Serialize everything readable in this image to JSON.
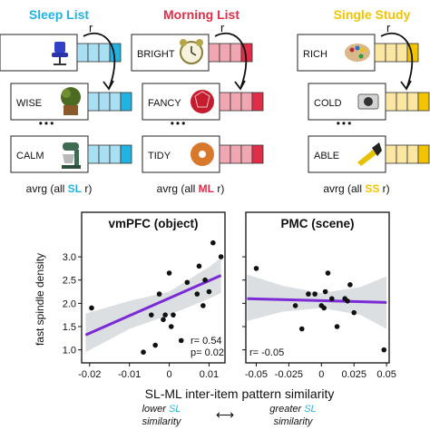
{
  "colors": {
    "sleep": "#22b3e3",
    "morning": "#e02e49",
    "single": "#f2c400",
    "sleep_light": "#a8dff3",
    "morning_light": "#f0a7b2",
    "single_light": "#fbe6a2",
    "fit_line": "#7b2bd6",
    "ci_band": "#d5d9dc"
  },
  "lists": [
    {
      "title": "Sleep List",
      "color_key": "sleep",
      "top_word": "",
      "top_icon": "chair-icon",
      "r_label": "r",
      "items": [
        {
          "word": "WISE",
          "icon": "potted-plant-icon"
        },
        {
          "word": "CALM",
          "icon": "stand-mixer-icon"
        }
      ],
      "dots": "•••",
      "avg_prefix": "avrg (all ",
      "avg_highlight": "SL",
      "avg_suffix": " r)"
    },
    {
      "title": "Morning List",
      "color_key": "morning",
      "top_word": "BRIGHT",
      "top_icon": "alarm-clock-icon",
      "r_label": "r",
      "items": [
        {
          "word": "FANCY",
          "icon": "dice-icon"
        },
        {
          "word": "TIDY",
          "icon": "donut-icon"
        }
      ],
      "dots": "•••",
      "avg_prefix": "avrg (all ",
      "avg_highlight": "ML",
      "avg_suffix": " r)"
    },
    {
      "title": "Single Study",
      "color_key": "single",
      "top_word": "RICH",
      "top_icon": "palette-icon",
      "r_label": "r",
      "items": [
        {
          "word": "COLD",
          "icon": "camera-icon"
        },
        {
          "word": "ABLE",
          "icon": "flashlight-icon"
        }
      ],
      "dots": "•••",
      "avg_prefix": "avrg (all ",
      "avg_highlight": "SS",
      "avg_suffix": " r)"
    }
  ],
  "chart_data": [
    {
      "type": "scatter",
      "title": "vmPFC (object)",
      "ylabel": "fast spindle density",
      "xlim": [
        -0.022,
        0.014
      ],
      "ylim": [
        0.72,
        3.45
      ],
      "xticks": [
        -0.02,
        -0.01,
        0,
        0.01
      ],
      "xtick_labels": [
        "-0.02",
        "-0.01",
        "0",
        "0.01"
      ],
      "yticks": [
        1.0,
        1.5,
        2.0,
        2.5,
        3.0
      ],
      "ytick_labels": [
        "1.0",
        "1.5",
        "2.0",
        "2.5",
        "3.0"
      ],
      "points": [
        {
          "x": -0.0195,
          "y": 1.9
        },
        {
          "x": -0.0065,
          "y": 0.95
        },
        {
          "x": -0.0045,
          "y": 1.75
        },
        {
          "x": -0.0035,
          "y": 1.1
        },
        {
          "x": -0.0025,
          "y": 2.2
        },
        {
          "x": -0.0015,
          "y": 1.65
        },
        {
          "x": -0.001,
          "y": 1.75
        },
        {
          "x": 0.0,
          "y": 2.65
        },
        {
          "x": 0.0005,
          "y": 1.5
        },
        {
          "x": 0.001,
          "y": 1.75
        },
        {
          "x": 0.003,
          "y": 1.2
        },
        {
          "x": 0.0045,
          "y": 2.45
        },
        {
          "x": 0.007,
          "y": 2.2
        },
        {
          "x": 0.0075,
          "y": 2.8
        },
        {
          "x": 0.0085,
          "y": 1.95
        },
        {
          "x": 0.009,
          "y": 2.5
        },
        {
          "x": 0.01,
          "y": 2.25
        },
        {
          "x": 0.011,
          "y": 3.3
        },
        {
          "x": 0.013,
          "y": 3.0
        }
      ],
      "fit": {
        "x": [
          -0.021,
          0.013
        ],
        "y": [
          1.32,
          2.6
        ]
      },
      "ci": {
        "x": [
          -0.021,
          -0.01,
          0,
          0.01,
          0.013
        ],
        "lower": [
          0.95,
          1.45,
          1.75,
          2.1,
          2.22
        ],
        "upper": [
          1.78,
          2.05,
          2.25,
          2.78,
          2.98
        ]
      },
      "annotation": [
        "r= 0.54",
        "p= 0.02"
      ]
    },
    {
      "type": "scatter",
      "title": "PMC (scene)",
      "ylabel": "",
      "xlim": [
        -0.058,
        0.052
      ],
      "ylim": [
        0.72,
        3.45
      ],
      "xticks": [
        -0.05,
        -0.025,
        0,
        0.025,
        0.05
      ],
      "xtick_labels": [
        "-0.05",
        "-0.025",
        "0",
        "0.025",
        "0.05"
      ],
      "yticks": [
        1.0,
        1.5,
        2.0,
        2.5,
        3.0
      ],
      "ytick_labels": [],
      "points": [
        {
          "x": -0.05,
          "y": 2.75
        },
        {
          "x": -0.02,
          "y": 1.95
        },
        {
          "x": -0.015,
          "y": 1.45
        },
        {
          "x": -0.01,
          "y": 2.2
        },
        {
          "x": -0.005,
          "y": 2.2
        },
        {
          "x": 0.0,
          "y": 1.95
        },
        {
          "x": 0.002,
          "y": 1.9
        },
        {
          "x": 0.003,
          "y": 2.25
        },
        {
          "x": 0.005,
          "y": 2.65
        },
        {
          "x": 0.008,
          "y": 2.1
        },
        {
          "x": 0.012,
          "y": 1.5
        },
        {
          "x": 0.018,
          "y": 2.1
        },
        {
          "x": 0.02,
          "y": 2.05
        },
        {
          "x": 0.022,
          "y": 2.4
        },
        {
          "x": 0.025,
          "y": 1.8
        },
        {
          "x": 0.048,
          "y": 1.0
        }
      ],
      "fit": {
        "x": [
          -0.057,
          0.05
        ],
        "y": [
          2.1,
          2.02
        ]
      },
      "ci": {
        "x": [
          -0.057,
          -0.03,
          0,
          0.03,
          0.05
        ],
        "lower": [
          1.62,
          1.82,
          1.9,
          1.75,
          1.45
        ],
        "upper": [
          2.62,
          2.38,
          2.22,
          2.35,
          2.58
        ]
      },
      "annotation": [
        "r= -0.05"
      ]
    }
  ],
  "shared_xlabel": "SL-ML inter-item pattern similarity",
  "legend": {
    "lower_prefix": "lower ",
    "lower_highlight": "SL",
    "lower_suffix": "similarity",
    "arrow": "⟷",
    "greater_prefix": "greater ",
    "greater_highlight": "SL",
    "greater_suffix": "similarity"
  }
}
